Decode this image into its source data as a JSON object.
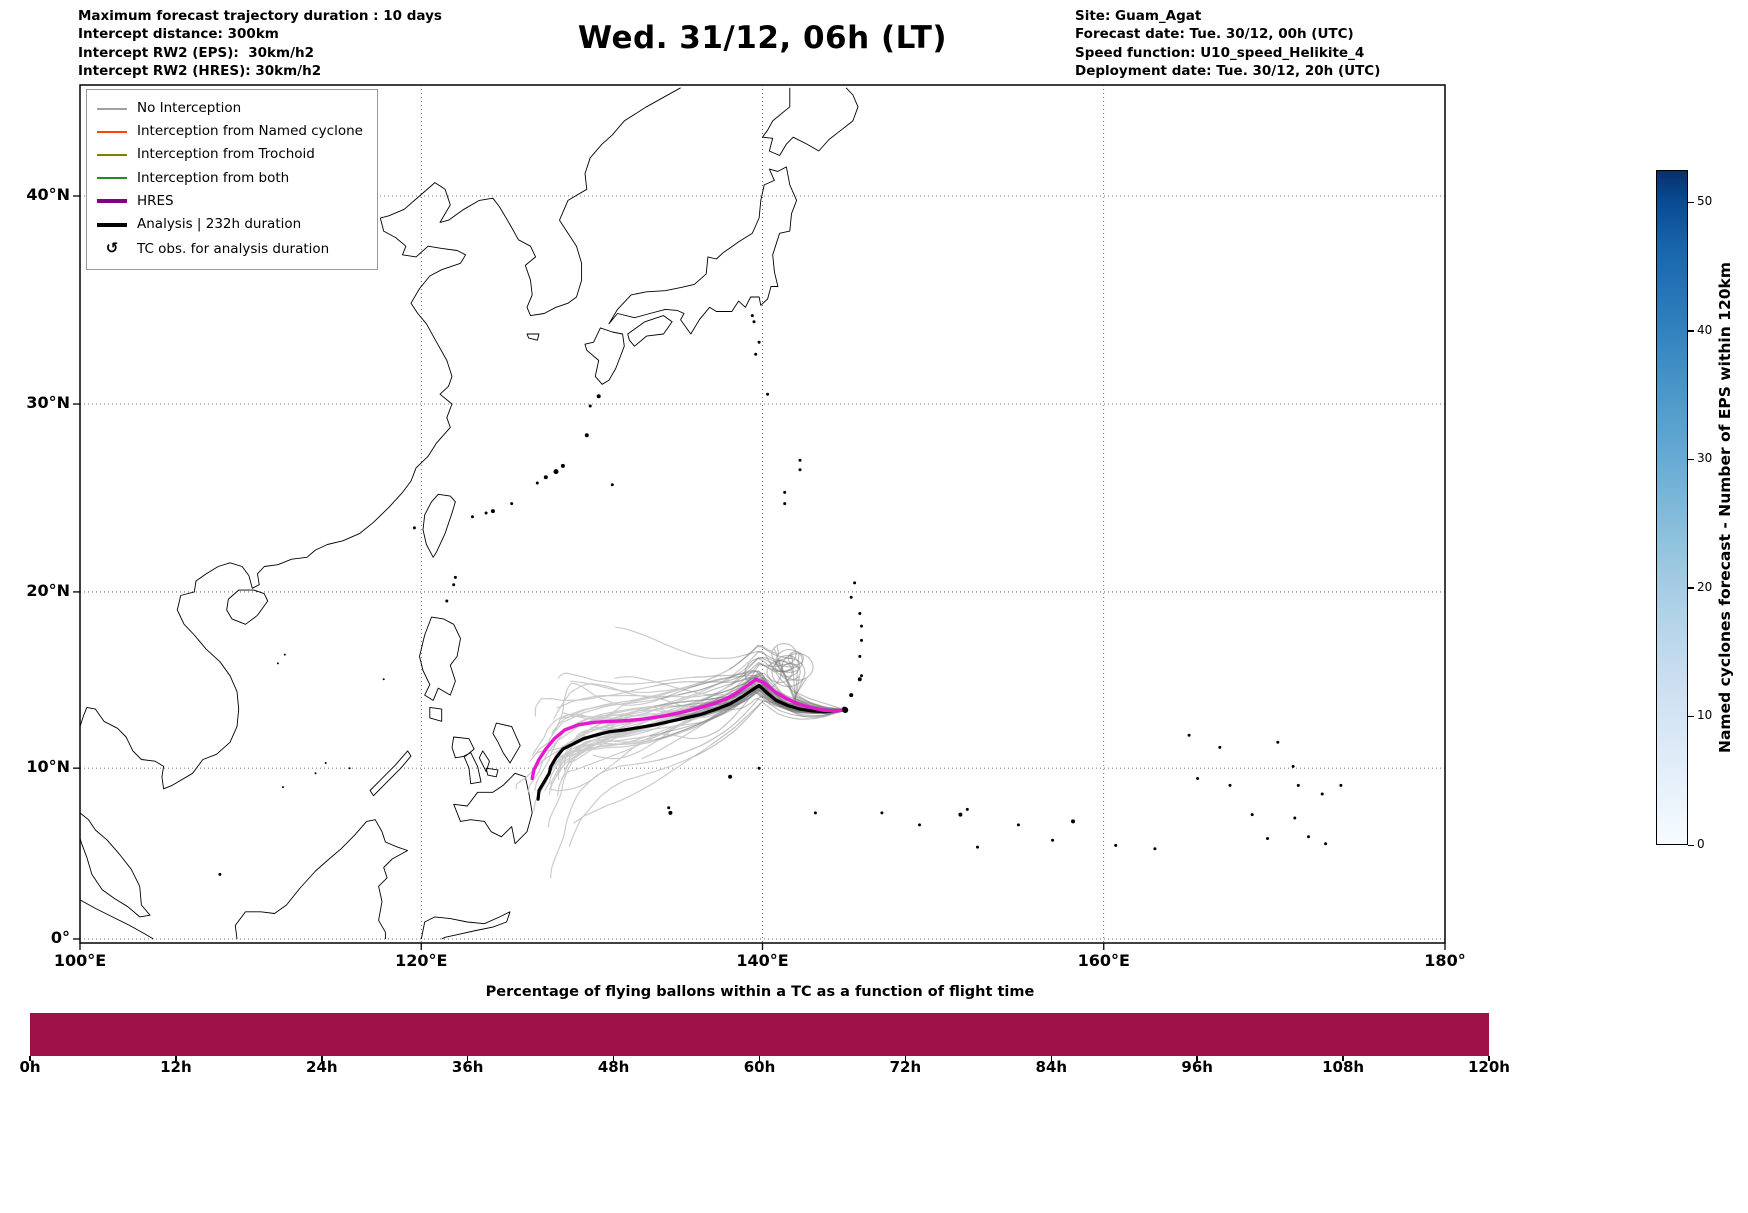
{
  "header": {
    "left_lines": [
      "Maximum forecast trajectory duration : 10 days",
      "Intercept distance: 300km",
      "Intercept RW2 (EPS):  30km/h2",
      "Intercept RW2 (HRES): 30km/h2"
    ],
    "title": "Wed. 31/12, 06h (LT)",
    "right_lines": [
      "Site: Guam_Agat",
      "Forecast date: Tue. 30/12, 00h (UTC)",
      "Speed function: U10_speed_Helikite_4",
      "Deployment date: Tue. 30/12, 20h (UTC)"
    ]
  },
  "map": {
    "x_tick_labels": [
      "100°E",
      "120°E",
      "140°E",
      "160°E",
      "180°"
    ],
    "x_tick_lons": [
      100,
      120,
      140,
      160,
      180
    ],
    "y_tick_labels": [
      "0°",
      "10°N",
      "20°N",
      "30°N",
      "40°N"
    ],
    "y_tick_lats": [
      0,
      10,
      20,
      30,
      40
    ],
    "legend": {
      "items": [
        {
          "label": "No Interception",
          "color": "#a0a0a0",
          "lw": 2
        },
        {
          "label": "Interception from Named cyclone",
          "color": "#ff4500",
          "lw": 2
        },
        {
          "label": "Interception from Trochoid",
          "color": "#808000",
          "lw": 2
        },
        {
          "label": "Interception from both",
          "color": "#228b22",
          "lw": 2
        },
        {
          "label": "HRES",
          "color": "#800080",
          "lw": 4
        },
        {
          "label": "Analysis | 232h duration",
          "color": "#000000",
          "lw": 4
        },
        {
          "label": "TC obs. for analysis duration",
          "symbol": "↺"
        }
      ]
    }
  },
  "colorbar": {
    "label": "Named cyclones forecast - Number of EPS within 120km",
    "ticks": [
      0,
      10,
      20,
      30,
      40,
      50
    ],
    "vmax": 52.5,
    "color_low": "#f7fbff",
    "color_high": "#08306b"
  },
  "chart_data": [
    {
      "type": "trajectory_map",
      "site": "Guam_Agat",
      "lon_range": [
        100,
        180
      ],
      "lat_range": [
        0,
        44.6
      ],
      "start_point_lonlat": [
        144.85,
        13.35
      ],
      "hres_color": "#e619d0",
      "analysis_color": "#000000",
      "ensemble": {
        "count": 46,
        "loop_count": 9,
        "dark_color": "#777777",
        "light_color": "#c9c9c9"
      },
      "analysis_track": [
        [
          144.85,
          13.35
        ],
        [
          144.3,
          13.3
        ],
        [
          143.6,
          13.25
        ],
        [
          142.9,
          13.3
        ],
        [
          142.2,
          13.4
        ],
        [
          141.5,
          13.6
        ],
        [
          140.8,
          13.9
        ],
        [
          140.3,
          14.3
        ],
        [
          139.8,
          14.75
        ],
        [
          139.4,
          14.5
        ],
        [
          138.8,
          14.1
        ],
        [
          138.1,
          13.7
        ],
        [
          137.3,
          13.4
        ],
        [
          136.4,
          13.1
        ],
        [
          135.5,
          12.9
        ],
        [
          134.6,
          12.7
        ],
        [
          133.7,
          12.5
        ],
        [
          132.8,
          12.35
        ],
        [
          131.9,
          12.2
        ],
        [
          131.0,
          12.1
        ],
        [
          130.2,
          11.9
        ],
        [
          129.5,
          11.7
        ],
        [
          128.9,
          11.4
        ],
        [
          128.3,
          11.1
        ],
        [
          127.9,
          10.6
        ],
        [
          127.6,
          10.1
        ],
        [
          127.5,
          9.7
        ],
        [
          127.2,
          9.2
        ],
        [
          126.9,
          8.7
        ],
        [
          126.85,
          8.2
        ]
      ],
      "hres_track": [
        [
          144.85,
          13.35
        ],
        [
          144.2,
          13.3
        ],
        [
          143.5,
          13.35
        ],
        [
          142.8,
          13.5
        ],
        [
          142.1,
          13.7
        ],
        [
          141.4,
          14.0
        ],
        [
          140.7,
          14.4
        ],
        [
          140.1,
          14.9
        ],
        [
          139.6,
          15.1
        ],
        [
          139.2,
          14.8
        ],
        [
          138.6,
          14.4
        ],
        [
          137.9,
          14.0
        ],
        [
          137.1,
          13.7
        ],
        [
          136.2,
          13.45
        ],
        [
          135.2,
          13.2
        ],
        [
          134.2,
          13.0
        ],
        [
          133.2,
          12.85
        ],
        [
          132.2,
          12.75
        ],
        [
          131.2,
          12.7
        ],
        [
          130.2,
          12.65
        ],
        [
          129.2,
          12.5
        ],
        [
          128.4,
          12.2
        ],
        [
          127.8,
          11.7
        ],
        [
          127.3,
          11.1
        ],
        [
          126.9,
          10.5
        ],
        [
          126.6,
          9.9
        ],
        [
          126.5,
          9.4
        ]
      ]
    },
    {
      "type": "bar",
      "title": "Percentage of flying ballons within a TC as a function of flight time",
      "x_tick_labels": [
        "0h",
        "12h",
        "24h",
        "36h",
        "48h",
        "60h",
        "72h",
        "84h",
        "96h",
        "108h",
        "120h"
      ],
      "x_range_hours": [
        0,
        120
      ],
      "values_percent": [
        100,
        100,
        100,
        100,
        100,
        100,
        100,
        100,
        100,
        100
      ],
      "bar_color": "#9e1048"
    }
  ]
}
